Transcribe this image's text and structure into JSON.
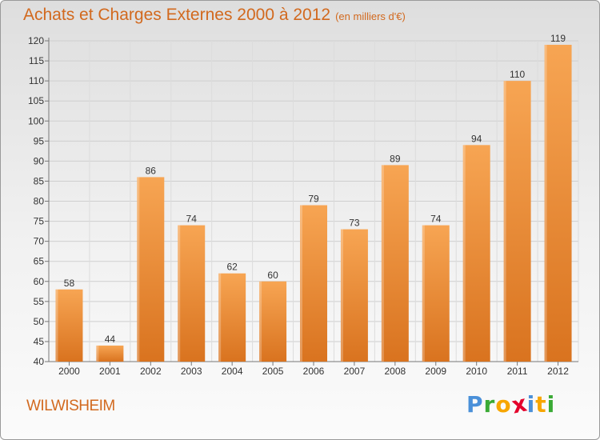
{
  "header": {
    "title": "Achats et Charges Externes 2000 à 2012",
    "unit": "(en milliers d'€)"
  },
  "footer": {
    "commune": "WILWISHEIM",
    "logo_letters": [
      "P",
      "r",
      "o",
      "x",
      "i",
      "t",
      "i"
    ],
    "logo_colors": [
      "#4a90d9",
      "#3aaa35",
      "#f7a600",
      "#e4002b",
      "#4a90d9",
      "#f7a600",
      "#3aaa35"
    ]
  },
  "colors": {
    "bar_light": "#f7a553",
    "bar_dark": "#d9731f",
    "accent": "#d2691e"
  },
  "chart_data": {
    "type": "bar",
    "categories": [
      "2000",
      "2001",
      "2002",
      "2003",
      "2004",
      "2005",
      "2006",
      "2007",
      "2008",
      "2009",
      "2010",
      "2011",
      "2012"
    ],
    "values": [
      58,
      44,
      86,
      74,
      62,
      60,
      79,
      73,
      89,
      74,
      94,
      110,
      119
    ],
    "ylim": [
      40,
      120
    ],
    "yticks": [
      40,
      45,
      50,
      55,
      60,
      65,
      70,
      75,
      80,
      85,
      90,
      95,
      100,
      105,
      110,
      115,
      120
    ],
    "grid": true,
    "xlabel": "",
    "ylabel": ""
  }
}
